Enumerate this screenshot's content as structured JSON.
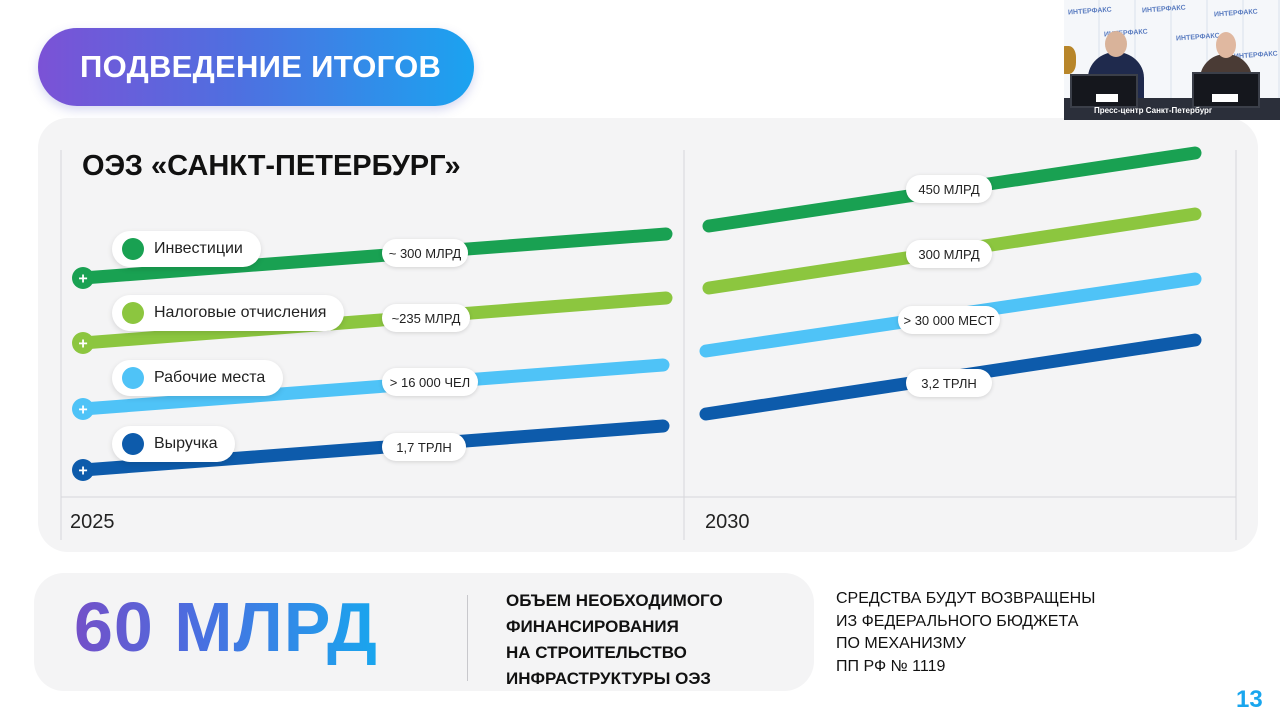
{
  "slide": {
    "section_title": "ПОДВЕДЕНИЕ ИТОГОВ",
    "chart_title": "ОЭЗ «САНКТ-ПЕТЕРБУРГ»",
    "page_number": "13"
  },
  "chart_data": {
    "type": "line",
    "x": [
      "2025",
      "2030"
    ],
    "series": [
      {
        "name": "Инвестиции",
        "color": "#19a152",
        "value_2025": "~ 300 МЛРД",
        "value_2030": "450 МЛРД"
      },
      {
        "name": "Налоговые отчисления",
        "color": "#8cc63f",
        "value_2025": "~235 МЛРД",
        "value_2030": "300 МЛРД"
      },
      {
        "name": "Рабочие места",
        "color": "#4fc3f7",
        "value_2025": "> 16 000 ЧЕЛ",
        "value_2030": "> 30 000 МЕСТ"
      },
      {
        "name": "Выручка",
        "color": "#0d5bab",
        "value_2025": "1,7 ТРЛН",
        "value_2030": "3,2 ТРЛН"
      }
    ],
    "xlabels": [
      "2025",
      "2030"
    ],
    "marker_label": "+"
  },
  "financing": {
    "amount": "60 МЛРД",
    "description_lines": [
      "ОБЪЕМ НЕОБХОДИМОГО",
      "ФИНАНСИРОВАНИЯ",
      "НА СТРОИТЕЛЬСТВО",
      "ИНФРАСТРУКТУРЫ ОЭЗ"
    ],
    "note_lines": [
      "СРЕДСТВА БУДУТ ВОЗВРАЩЕНЫ",
      "ИЗ ФЕДЕРАЛЬНОГО БЮДЖЕТА",
      "ПО МЕХАНИЗМУ",
      "ПП РФ № 1119"
    ]
  },
  "video": {
    "caption": "Пресс-центр  Санкт-Петербург",
    "watermark": "ИНТЕРФАКС"
  },
  "colors": {
    "accent_purple": "#7450c8",
    "accent_blue": "#19a6ee",
    "card_bg": "#f4f4f5"
  }
}
